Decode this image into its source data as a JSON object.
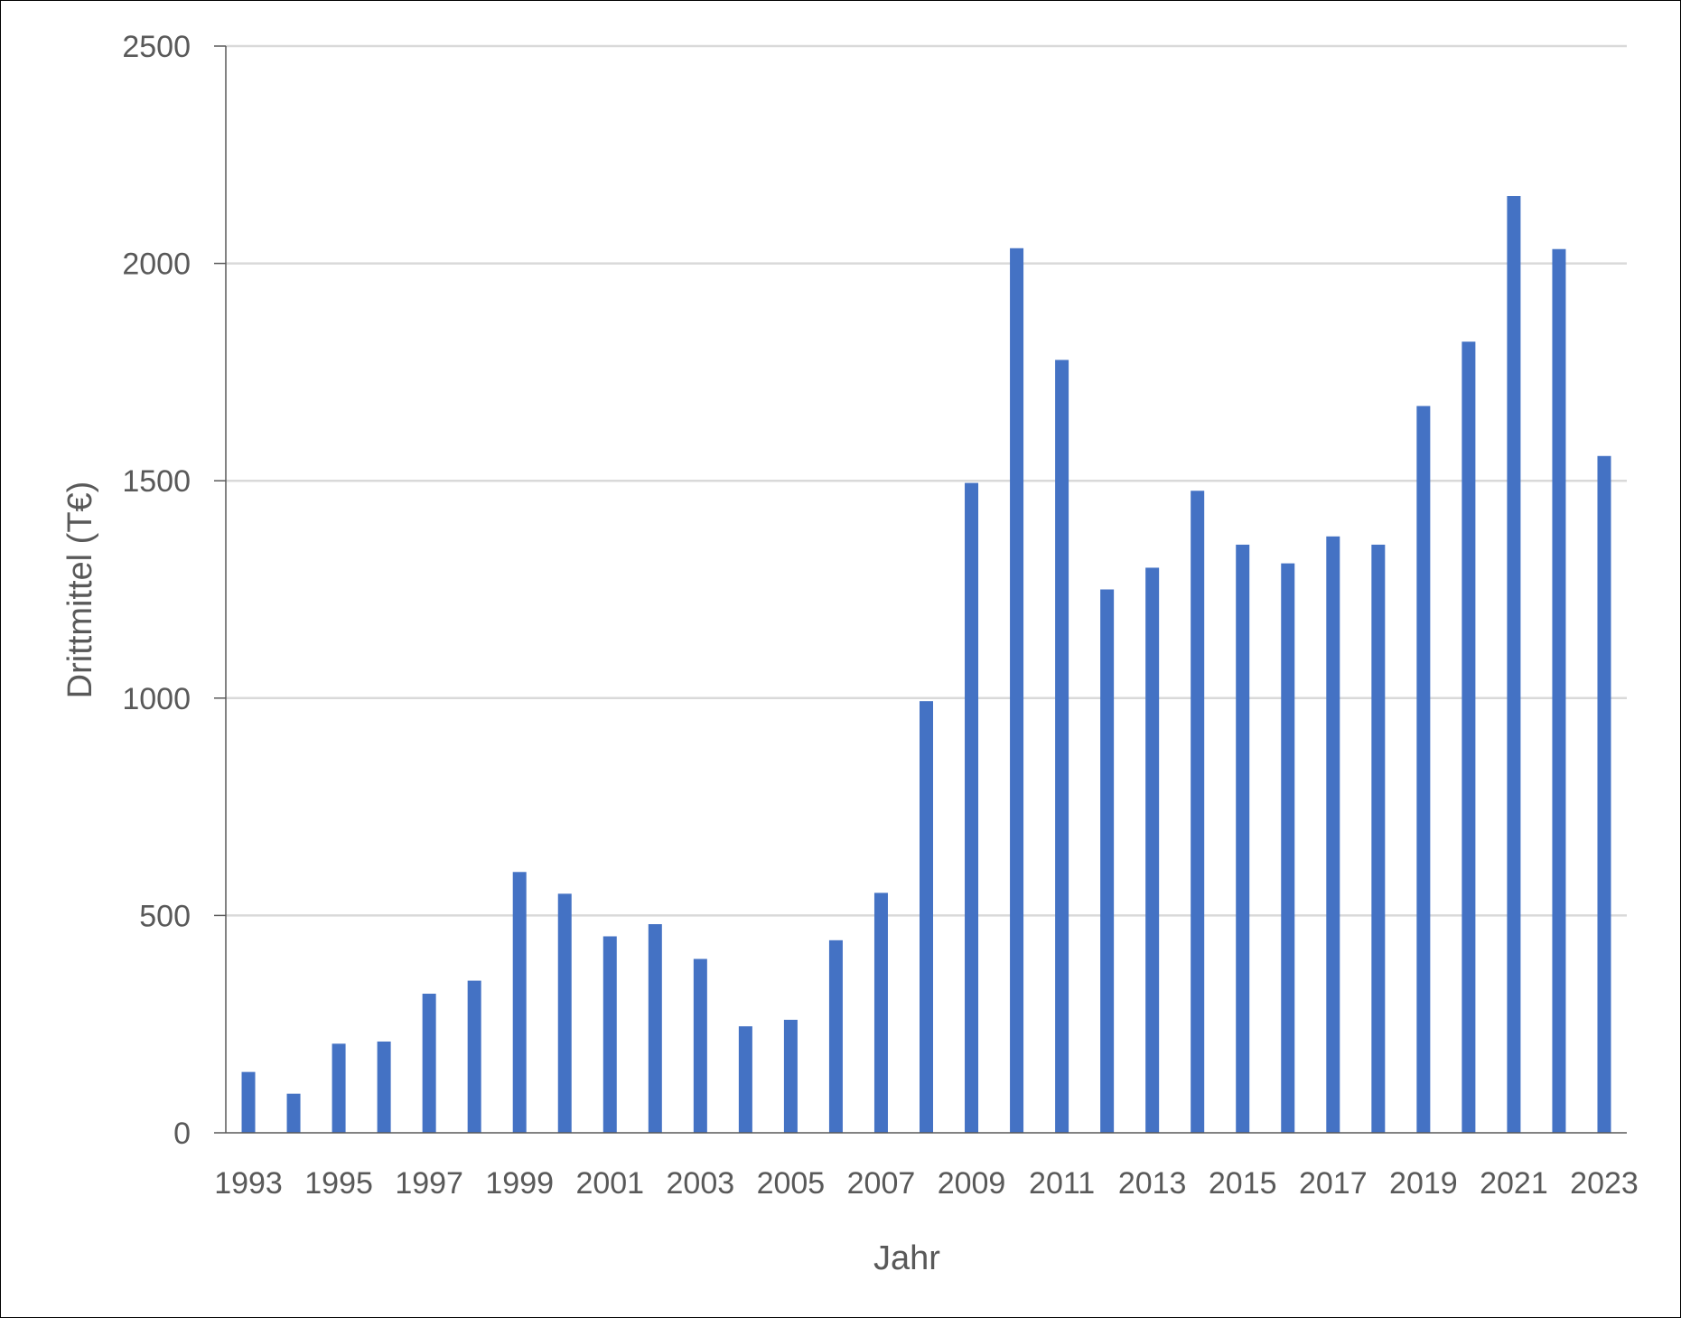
{
  "chart_data": {
    "type": "bar",
    "categories": [
      "1993",
      "1994",
      "1995",
      "1996",
      "1997",
      "1998",
      "1999",
      "2000",
      "2001",
      "2002",
      "2003",
      "2004",
      "2005",
      "2006",
      "2007",
      "2008",
      "2009",
      "2010",
      "2011",
      "2012",
      "2013",
      "2014",
      "2015",
      "2016",
      "2017",
      "2018",
      "2019",
      "2020",
      "2021",
      "2022",
      "2023"
    ],
    "x_tick_labels": [
      "1993",
      "1995",
      "1997",
      "1999",
      "2001",
      "2003",
      "2005",
      "2007",
      "2009",
      "2011",
      "2013",
      "2015",
      "2017",
      "2019",
      "2021",
      "2023"
    ],
    "values": [
      140,
      90,
      205,
      210,
      320,
      350,
      600,
      550,
      452,
      480,
      400,
      245,
      260,
      443,
      552,
      993,
      1495,
      2035,
      1778,
      1250,
      1300,
      1477,
      1353,
      1310,
      1372,
      1353,
      1672,
      1820,
      2155,
      2033,
      1557
    ],
    "series": [
      {
        "values_ref": "values",
        "color": "#4472C4"
      }
    ],
    "title": "",
    "xlabel": "Jahr",
    "ylabel": "Drittmittel (T€)",
    "ylim": [
      0,
      2500
    ],
    "yticks": [
      "0",
      "500",
      "1000",
      "1500",
      "2000",
      "2500"
    ],
    "grid": true,
    "legend": "none",
    "colors": {
      "bar": "#4472C4",
      "grid": "#D9D9D9",
      "axis": "#595959",
      "text": "#595959"
    }
  }
}
